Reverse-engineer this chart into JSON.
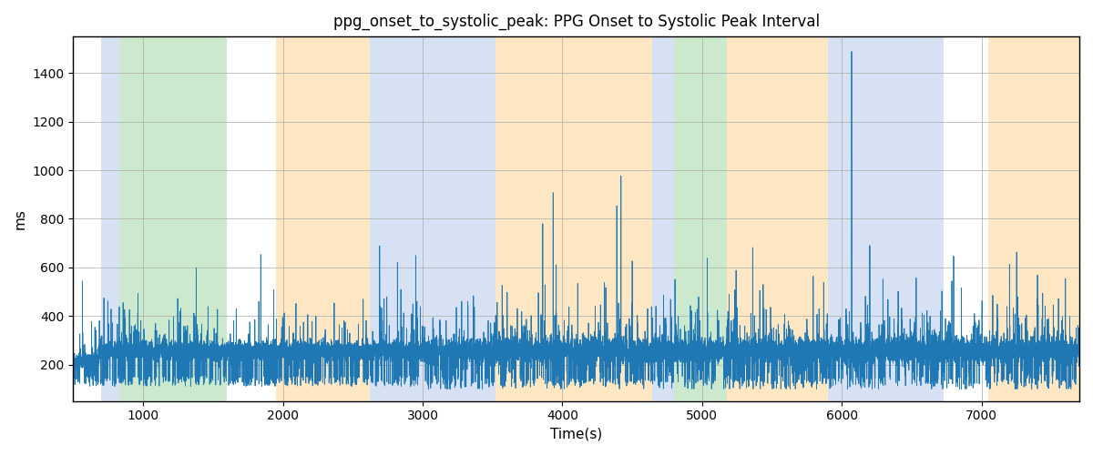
{
  "title": "ppg_onset_to_systolic_peak: PPG Onset to Systolic Peak Interval",
  "xlabel": "Time(s)",
  "ylabel": "ms",
  "xlim": [
    500,
    7700
  ],
  "ylim": [
    50,
    1550
  ],
  "yticks": [
    200,
    400,
    600,
    800,
    1000,
    1200,
    1400
  ],
  "xticks": [
    1000,
    2000,
    3000,
    4000,
    5000,
    6000,
    7000
  ],
  "line_color": "#1f77b4",
  "line_width": 0.6,
  "grid_color": "#aaaaaa",
  "colored_bands": [
    {
      "xmin": 700,
      "xmax": 830,
      "color": "#aec6e8",
      "alpha": 0.5
    },
    {
      "xmin": 830,
      "xmax": 1600,
      "color": "#90d090",
      "alpha": 0.45
    },
    {
      "xmin": 1950,
      "xmax": 2620,
      "color": "#ffd08a",
      "alpha": 0.5
    },
    {
      "xmin": 2620,
      "xmax": 3520,
      "color": "#aec6e8",
      "alpha": 0.5
    },
    {
      "xmin": 3520,
      "xmax": 4640,
      "color": "#ffd08a",
      "alpha": 0.5
    },
    {
      "xmin": 4640,
      "xmax": 4800,
      "color": "#aec6e8",
      "alpha": 0.5
    },
    {
      "xmin": 4800,
      "xmax": 5180,
      "color": "#90d090",
      "alpha": 0.45
    },
    {
      "xmin": 5180,
      "xmax": 5900,
      "color": "#ffd08a",
      "alpha": 0.5
    },
    {
      "xmin": 5900,
      "xmax": 6730,
      "color": "#aec6e8",
      "alpha": 0.5
    },
    {
      "xmin": 7050,
      "xmax": 7700,
      "color": "#ffd08a",
      "alpha": 0.5
    }
  ],
  "seed": 12345,
  "n_points": 14400,
  "x_start": 500,
  "x_end": 7700
}
